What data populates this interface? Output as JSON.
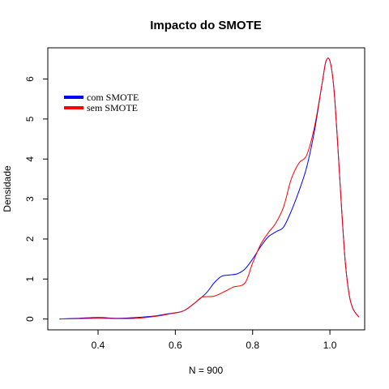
{
  "chart_data": {
    "type": "line",
    "title": "Impacto do SMOTE",
    "xlabel": "N = 900",
    "ylabel": "Densidade",
    "xlim": [
      0.27,
      1.09
    ],
    "ylim": [
      -0.27,
      6.78
    ],
    "xticks": [
      0.4,
      0.6,
      0.8,
      1.0
    ],
    "xtick_labels": [
      "0.4",
      "0.6",
      "0.8",
      "1.0"
    ],
    "yticks": [
      0,
      1,
      2,
      3,
      4,
      5,
      6
    ],
    "ytick_labels": [
      "0",
      "1",
      "2",
      "3",
      "4",
      "5",
      "6"
    ],
    "grid": false,
    "legend": "top-left",
    "series": [
      {
        "name": "com SMOTE",
        "color": "#0000ff",
        "points": [
          [
            0.3,
            0.0
          ],
          [
            0.35,
            0.02
          ],
          [
            0.4,
            0.04
          ],
          [
            0.45,
            0.02
          ],
          [
            0.5,
            0.04
          ],
          [
            0.55,
            0.08
          ],
          [
            0.58,
            0.13
          ],
          [
            0.62,
            0.2
          ],
          [
            0.65,
            0.4
          ],
          [
            0.68,
            0.65
          ],
          [
            0.7,
            0.9
          ],
          [
            0.72,
            1.07
          ],
          [
            0.74,
            1.1
          ],
          [
            0.76,
            1.13
          ],
          [
            0.78,
            1.25
          ],
          [
            0.8,
            1.5
          ],
          [
            0.82,
            1.8
          ],
          [
            0.84,
            2.05
          ],
          [
            0.86,
            2.18
          ],
          [
            0.88,
            2.3
          ],
          [
            0.9,
            2.7
          ],
          [
            0.92,
            3.2
          ],
          [
            0.94,
            3.8
          ],
          [
            0.96,
            4.7
          ],
          [
            0.98,
            5.9
          ],
          [
            0.99,
            6.45
          ],
          [
            1.0,
            6.45
          ],
          [
            1.01,
            5.8
          ],
          [
            1.02,
            4.4
          ],
          [
            1.03,
            2.8
          ],
          [
            1.04,
            1.4
          ],
          [
            1.05,
            0.6
          ],
          [
            1.06,
            0.25
          ],
          [
            1.075,
            0.05
          ]
        ]
      },
      {
        "name": "sem SMOTE",
        "color": "#ff0000",
        "points": [
          [
            0.3,
            0.0
          ],
          [
            0.35,
            0.01
          ],
          [
            0.4,
            0.02
          ],
          [
            0.45,
            0.01
          ],
          [
            0.5,
            0.02
          ],
          [
            0.55,
            0.07
          ],
          [
            0.58,
            0.12
          ],
          [
            0.62,
            0.2
          ],
          [
            0.65,
            0.4
          ],
          [
            0.67,
            0.55
          ],
          [
            0.7,
            0.57
          ],
          [
            0.73,
            0.7
          ],
          [
            0.75,
            0.8
          ],
          [
            0.78,
            0.9
          ],
          [
            0.8,
            1.4
          ],
          [
            0.82,
            1.85
          ],
          [
            0.84,
            2.15
          ],
          [
            0.86,
            2.4
          ],
          [
            0.88,
            2.8
          ],
          [
            0.9,
            3.5
          ],
          [
            0.92,
            3.9
          ],
          [
            0.94,
            4.1
          ],
          [
            0.96,
            4.8
          ],
          [
            0.98,
            5.9
          ],
          [
            0.99,
            6.45
          ],
          [
            1.0,
            6.45
          ],
          [
            1.01,
            5.8
          ],
          [
            1.02,
            4.4
          ],
          [
            1.03,
            2.8
          ],
          [
            1.04,
            1.4
          ],
          [
            1.05,
            0.6
          ],
          [
            1.06,
            0.25
          ],
          [
            1.075,
            0.05
          ]
        ]
      }
    ]
  }
}
